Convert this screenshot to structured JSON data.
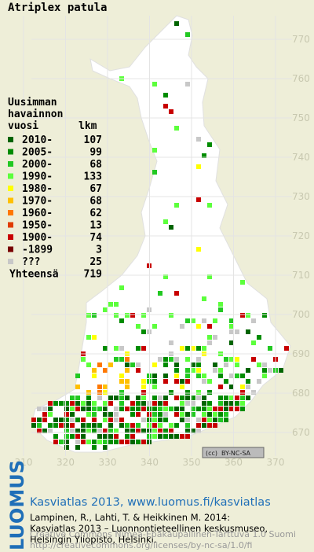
{
  "title": "Atriplex patula",
  "legend": {
    "header": [
      "Uusimman",
      "havainnon",
      "vuosi"
    ],
    "count_header": "lkm",
    "items": [
      {
        "label": "2010-",
        "count": "107",
        "color": "#006400"
      },
      {
        "label": "2005-",
        "count": "99",
        "color": "#008c00"
      },
      {
        "label": "2000-",
        "count": "68",
        "color": "#22c822"
      },
      {
        "label": "1990-",
        "count": "133",
        "color": "#5cff3c"
      },
      {
        "label": "1980-",
        "count": "67",
        "color": "#ffff00"
      },
      {
        "label": "1970-",
        "count": "68",
        "color": "#ffc000"
      },
      {
        "label": "1960-",
        "count": "62",
        "color": "#ff7800"
      },
      {
        "label": "1950-",
        "count": "13",
        "color": "#e03c00"
      },
      {
        "label": "1900-",
        "count": "74",
        "color": "#c80000"
      },
      {
        "label": "-1899",
        "count": "3",
        "color": "#780000"
      },
      {
        "label": "???",
        "count": "25",
        "color": "#c8c8c8"
      }
    ],
    "total_label": "Yhteensä",
    "total": "719"
  },
  "grid": {
    "north": [
      "770",
      "760",
      "750",
      "740",
      "730",
      "720",
      "710",
      "700",
      "690",
      "680",
      "670"
    ],
    "east": [
      "310",
      "320",
      "330",
      "340",
      "350",
      "360",
      "370"
    ]
  },
  "license_badge": "BY-NC-SA",
  "footer": {
    "brand": "LUOMUS",
    "headline": "Kasviatlas 2013, www.luomus.fi/kasviatlas",
    "citation": [
      "Lampinen, R., Lahti, T. & Heikkinen M. 2014:",
      "Kasviatlas 2013 – Luonnontieteellinen keskusmuseo,",
      "Helsingin Yliopisto, Helsinki."
    ],
    "license": [
      "Creative Commons Nimeä-Epäkaupallinen-Tarttuva 1.0 Suomi",
      "http://creativecommons.org/licenses/by-nc-sa/1.0/fi"
    ]
  }
}
